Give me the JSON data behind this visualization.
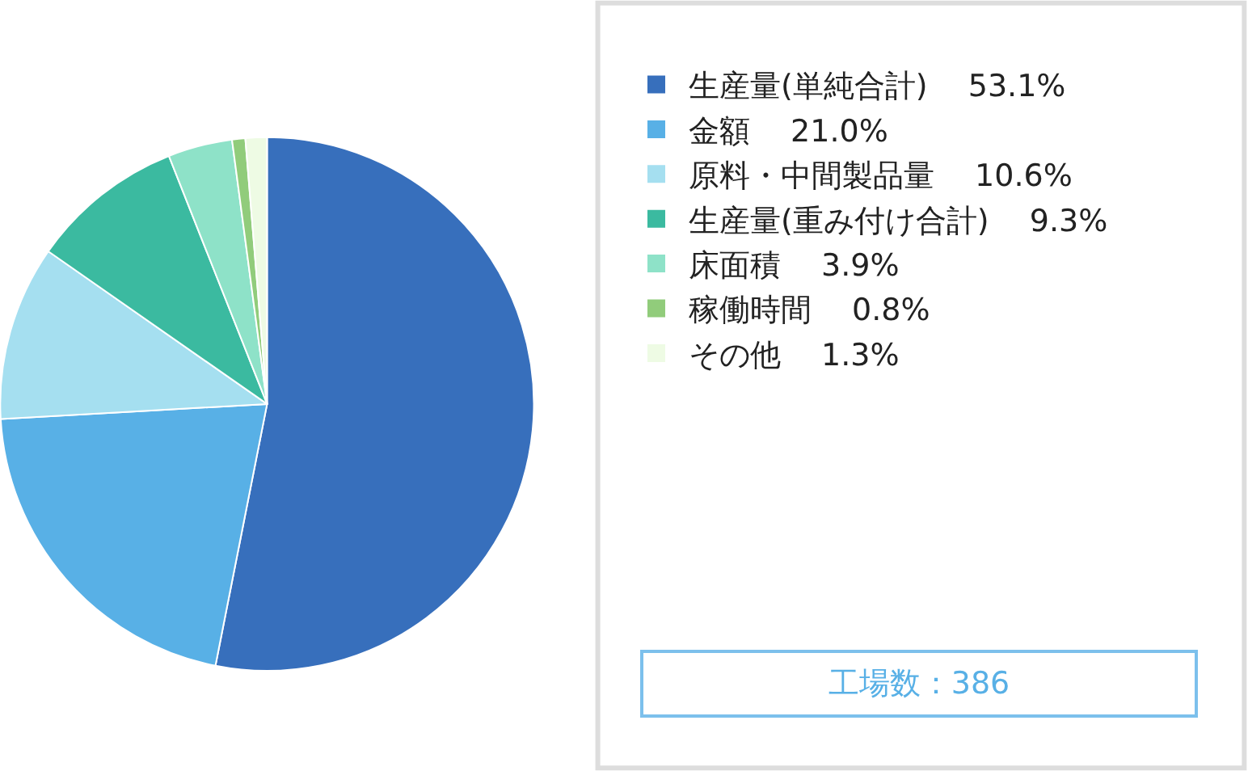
{
  "chart_data": {
    "type": "pie",
    "categories": [
      "生産量(単純合計)",
      "金額",
      "原料・中間製品量",
      "生産量(重み付け合計)",
      "床面積",
      "稼働時間",
      "その他"
    ],
    "values": [
      53.1,
      21.0,
      10.6,
      9.3,
      3.9,
      0.8,
      1.3
    ],
    "value_labels": [
      "53.1%",
      "21.0%",
      "10.6%",
      "9.3%",
      "3.9%",
      "0.8%",
      "1.3%"
    ],
    "colors": [
      "#376fbc",
      "#58b0e6",
      "#a5dff0",
      "#3bbaa0",
      "#8ee2c8",
      "#91cc7b",
      "#eefbe4"
    ],
    "legend": "right",
    "annotations": [
      "工場数：386"
    ]
  }
}
